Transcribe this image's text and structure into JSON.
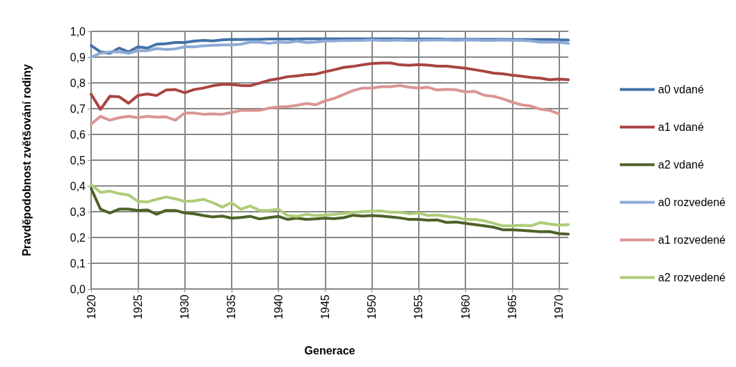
{
  "chart_data": {
    "type": "line",
    "xlabel": "Generace",
    "ylabel": "Pravděpodobnost zvětšování rodiny",
    "x": [
      1920,
      1921,
      1922,
      1923,
      1924,
      1925,
      1926,
      1927,
      1928,
      1929,
      1930,
      1931,
      1932,
      1933,
      1934,
      1935,
      1936,
      1937,
      1938,
      1939,
      1940,
      1941,
      1942,
      1943,
      1944,
      1945,
      1946,
      1947,
      1948,
      1949,
      1950,
      1951,
      1952,
      1953,
      1954,
      1955,
      1956,
      1957,
      1958,
      1959,
      1960,
      1961,
      1962,
      1963,
      1964,
      1965,
      1966,
      1967,
      1968,
      1969,
      1970,
      1971
    ],
    "xlim": [
      1920,
      1971
    ],
    "xticks": [
      1920,
      1925,
      1930,
      1935,
      1940,
      1945,
      1950,
      1955,
      1960,
      1965,
      1970
    ],
    "ylim": [
      0,
      1
    ],
    "yticks": [
      {
        "value": 0,
        "label": "0,0"
      },
      {
        "value": 0.1,
        "label": "0,1"
      },
      {
        "value": 0.2,
        "label": "0,2"
      },
      {
        "value": 0.3,
        "label": "0,3"
      },
      {
        "value": 0.4,
        "label": "0,4"
      },
      {
        "value": 0.5,
        "label": "0,5"
      },
      {
        "value": 0.6,
        "label": "0,6"
      },
      {
        "value": 0.7,
        "label": "0,7"
      },
      {
        "value": 0.8,
        "label": "0,8"
      },
      {
        "value": 0.9,
        "label": "0,9"
      },
      {
        "value": 1,
        "label": "1,0"
      }
    ],
    "grid": true,
    "legend": "right",
    "marker": "none",
    "line_style": "solid",
    "series": [
      {
        "name": "a0 vdané",
        "color": "#4472a8",
        "values": [
          0.945,
          0.92,
          0.915,
          0.935,
          0.92,
          0.94,
          0.935,
          0.95,
          0.952,
          0.957,
          0.957,
          0.962,
          0.965,
          0.963,
          0.967,
          0.969,
          0.968,
          0.969,
          0.969,
          0.97,
          0.97,
          0.97,
          0.97,
          0.971,
          0.971,
          0.971,
          0.971,
          0.971,
          0.971,
          0.971,
          0.971,
          0.971,
          0.971,
          0.971,
          0.97,
          0.97,
          0.97,
          0.97,
          0.969,
          0.969,
          0.969,
          0.969,
          0.969,
          0.969,
          0.969,
          0.968,
          0.968,
          0.968,
          0.968,
          0.968,
          0.967,
          0.966
        ]
      },
      {
        "name": "a1 vdané",
        "color": "#a94442",
        "values": [
          0.756,
          0.697,
          0.748,
          0.746,
          0.721,
          0.751,
          0.757,
          0.751,
          0.772,
          0.774,
          0.762,
          0.774,
          0.78,
          0.789,
          0.794,
          0.794,
          0.79,
          0.789,
          0.799,
          0.81,
          0.816,
          0.824,
          0.827,
          0.832,
          0.834,
          0.843,
          0.851,
          0.86,
          0.864,
          0.87,
          0.875,
          0.877,
          0.877,
          0.87,
          0.868,
          0.871,
          0.869,
          0.865,
          0.865,
          0.861,
          0.857,
          0.851,
          0.845,
          0.838,
          0.835,
          0.83,
          0.826,
          0.821,
          0.818,
          0.812,
          0.815,
          0.812
        ]
      },
      {
        "name": "a2 vdané",
        "color": "#4f6228",
        "values": [
          0.39,
          0.31,
          0.295,
          0.31,
          0.31,
          0.305,
          0.307,
          0.29,
          0.305,
          0.305,
          0.295,
          0.292,
          0.285,
          0.28,
          0.283,
          0.275,
          0.278,
          0.282,
          0.272,
          0.277,
          0.282,
          0.27,
          0.275,
          0.27,
          0.272,
          0.275,
          0.273,
          0.277,
          0.286,
          0.283,
          0.285,
          0.283,
          0.28,
          0.276,
          0.27,
          0.27,
          0.267,
          0.268,
          0.258,
          0.26,
          0.255,
          0.25,
          0.245,
          0.24,
          0.23,
          0.23,
          0.228,
          0.225,
          0.222,
          0.223,
          0.215,
          0.213
        ]
      },
      {
        "name": "a0 rozvedené",
        "color": "#8eaad6",
        "values": [
          0.9,
          0.915,
          0.92,
          0.92,
          0.915,
          0.925,
          0.925,
          0.933,
          0.93,
          0.932,
          0.94,
          0.94,
          0.944,
          0.946,
          0.947,
          0.947,
          0.95,
          0.958,
          0.958,
          0.953,
          0.958,
          0.957,
          0.962,
          0.957,
          0.958,
          0.963,
          0.963,
          0.964,
          0.964,
          0.965,
          0.967,
          0.965,
          0.965,
          0.966,
          0.964,
          0.965,
          0.966,
          0.966,
          0.966,
          0.965,
          0.966,
          0.966,
          0.965,
          0.965,
          0.966,
          0.965,
          0.965,
          0.963,
          0.958,
          0.958,
          0.958,
          0.953
        ]
      },
      {
        "name": "a1 rozvedené",
        "color": "#d99594",
        "values": [
          0.64,
          0.67,
          0.655,
          0.665,
          0.67,
          0.665,
          0.67,
          0.667,
          0.668,
          0.655,
          0.683,
          0.683,
          0.678,
          0.68,
          0.678,
          0.685,
          0.693,
          0.693,
          0.693,
          0.702,
          0.707,
          0.708,
          0.713,
          0.72,
          0.715,
          0.73,
          0.74,
          0.755,
          0.77,
          0.78,
          0.78,
          0.785,
          0.785,
          0.79,
          0.783,
          0.78,
          0.783,
          0.772,
          0.775,
          0.773,
          0.765,
          0.767,
          0.752,
          0.748,
          0.738,
          0.725,
          0.715,
          0.71,
          0.698,
          0.693,
          0.68,
          null
        ]
      },
      {
        "name": "a2 rozvedené",
        "color": "#aecc78",
        "values": [
          0.405,
          0.375,
          0.38,
          0.37,
          0.365,
          0.34,
          0.338,
          0.348,
          0.357,
          0.35,
          0.34,
          0.342,
          0.348,
          0.335,
          0.318,
          0.335,
          0.31,
          0.322,
          0.305,
          0.305,
          0.31,
          0.285,
          0.282,
          0.29,
          0.285,
          0.287,
          0.29,
          0.293,
          0.297,
          0.3,
          0.302,
          0.303,
          0.298,
          0.298,
          0.292,
          0.295,
          0.285,
          0.287,
          0.282,
          0.278,
          0.27,
          0.27,
          0.265,
          0.255,
          0.245,
          0.245,
          0.247,
          0.245,
          0.258,
          0.252,
          0.248,
          0.25
        ]
      }
    ]
  }
}
